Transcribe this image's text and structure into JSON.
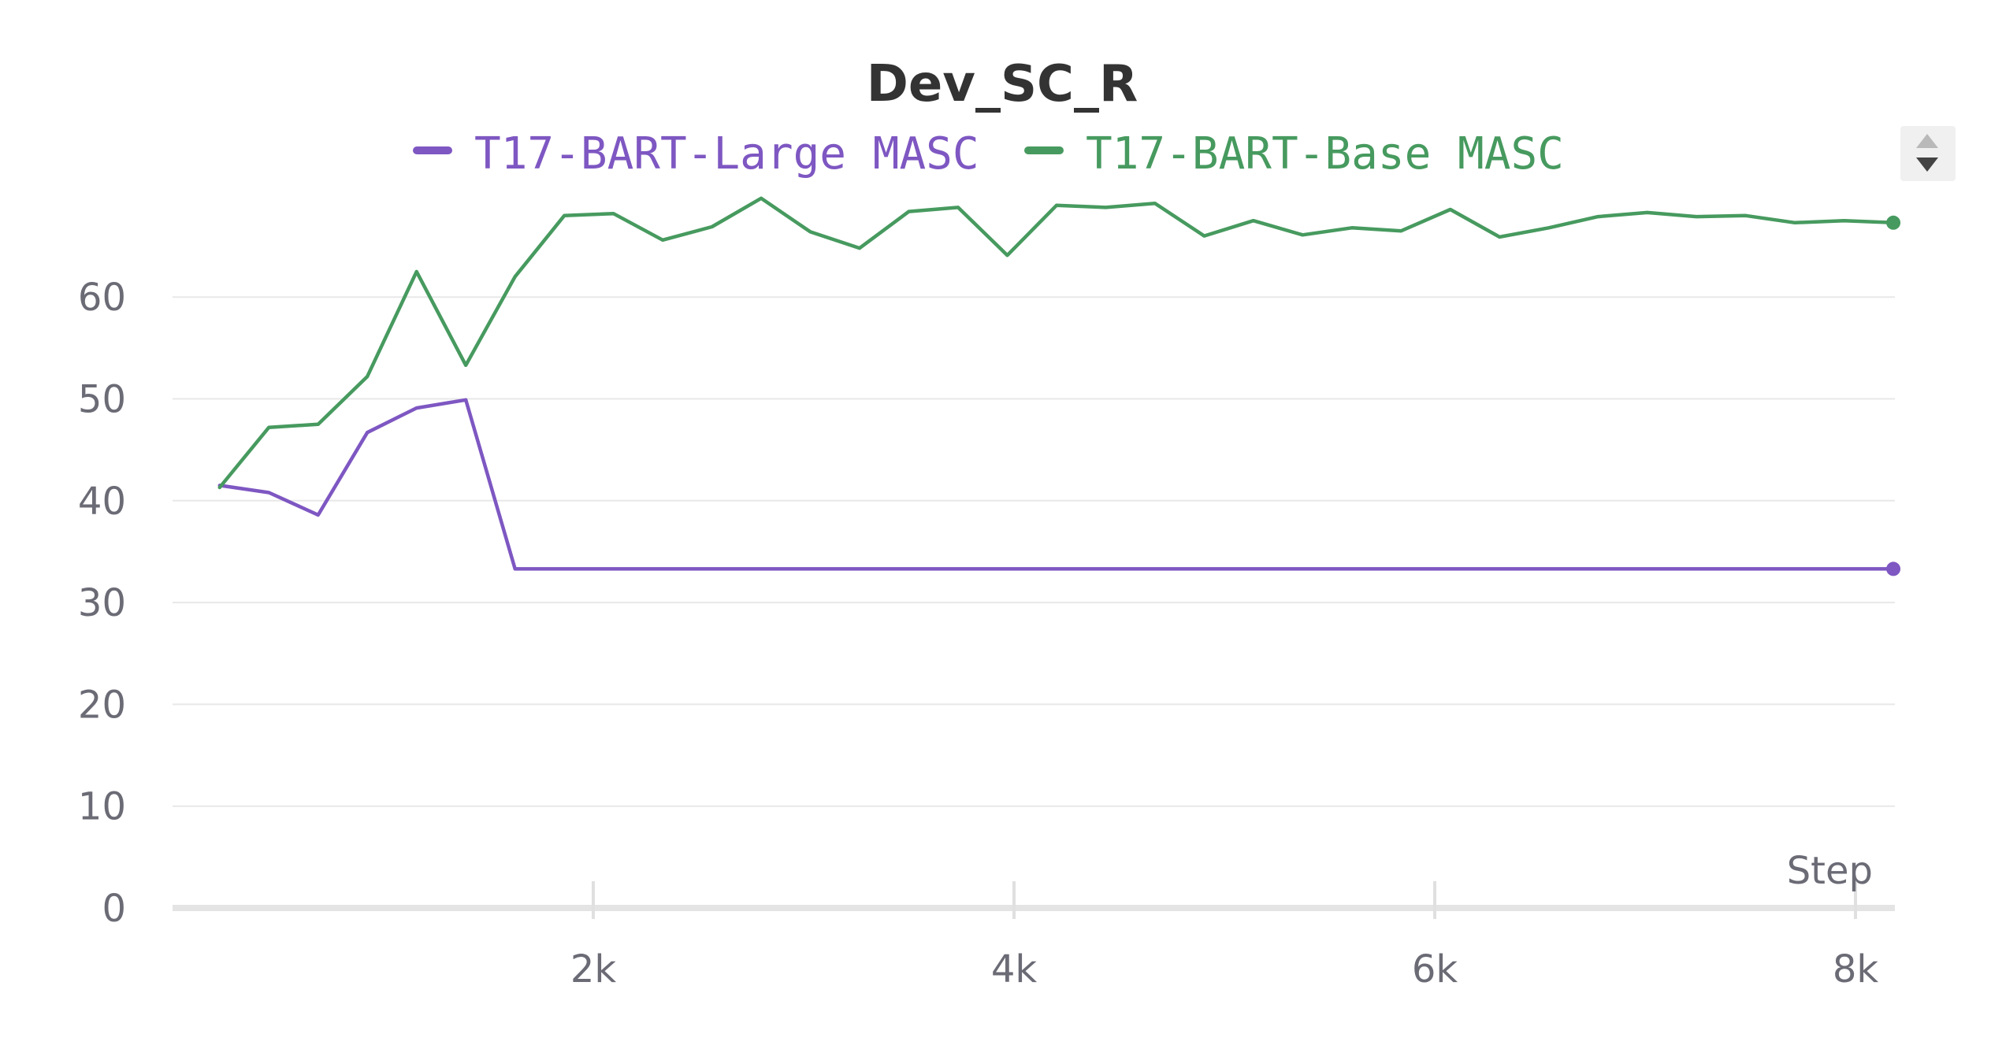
{
  "chart_data": {
    "type": "line",
    "title": "Dev_SC_R",
    "xlabel": "Step",
    "ylabel": "",
    "xlim": [
      0,
      8250
    ],
    "ylim": [
      0,
      70
    ],
    "x_ticks": [
      2000,
      4000,
      6000,
      8000
    ],
    "x_tick_labels": [
      "2k",
      "4k",
      "6k",
      "8k"
    ],
    "y_ticks": [
      0,
      10,
      20,
      30,
      40,
      50,
      60
    ],
    "y_tick_labels": [
      "0",
      "10",
      "20",
      "30",
      "40",
      "50",
      "60"
    ],
    "grid": true,
    "legend": "top-center",
    "series": [
      {
        "name": "T17-BART-Large MASC",
        "color": "#7e57c2",
        "x": [
          224,
          458,
          692,
          926,
          1160,
          1394,
          1628,
          8180
        ],
        "y": [
          41.5,
          40.8,
          38.6,
          46.7,
          49.1,
          49.9,
          33.3,
          33.3
        ]
      },
      {
        "name": "T17-BART-Base MASC",
        "color": "#479a5f",
        "x": [
          224,
          458,
          692,
          926,
          1160,
          1394,
          1628,
          1862,
          2096,
          2330,
          2564,
          2798,
          3032,
          3266,
          3500,
          3734,
          3968,
          4202,
          4436,
          4670,
          4904,
          5138,
          5372,
          5606,
          5840,
          6074,
          6308,
          6542,
          6776,
          7010,
          7244,
          7478,
          7712,
          7946,
          8180
        ],
        "y": [
          41.3,
          47.2,
          47.5,
          52.2,
          62.5,
          53.3,
          62.0,
          68.0,
          68.2,
          65.6,
          66.9,
          69.7,
          66.4,
          64.8,
          68.4,
          68.8,
          64.1,
          69.0,
          68.8,
          69.2,
          66.0,
          67.5,
          66.1,
          66.8,
          66.5,
          68.6,
          65.9,
          66.8,
          67.9,
          68.3,
          67.9,
          68.0,
          67.3,
          67.5,
          67.3
        ]
      }
    ]
  },
  "ui": {
    "scroll_up_icon": "triangle-up-icon",
    "scroll_down_icon": "triangle-down-icon"
  }
}
